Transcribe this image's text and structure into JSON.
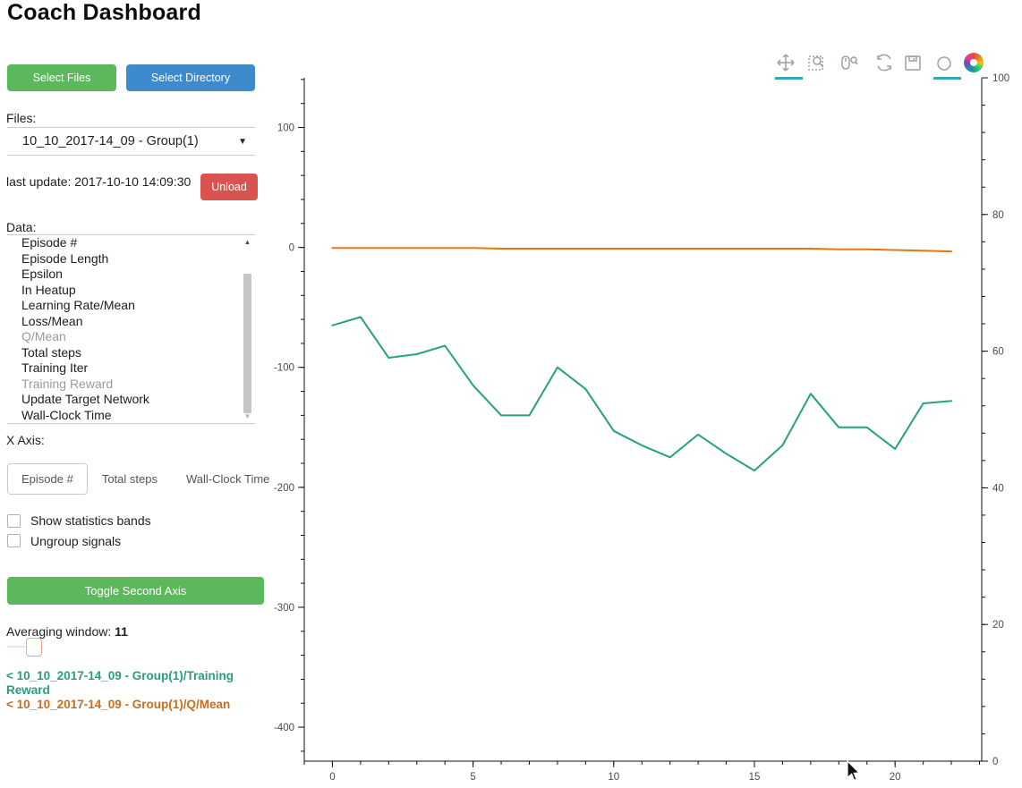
{
  "header": {
    "title": "Coach Dashboard"
  },
  "sidebar": {
    "select_files_label": "Select Files",
    "select_directory_label": "Select Directory",
    "files_label": "Files:",
    "files_selected": "10_10_2017-14_09 - Group(1)",
    "dropdown_caret_icon": "caret-down",
    "last_update": "last update: 2017-10-10 14:09:30",
    "unload_label": "Unload",
    "data_label": "Data:",
    "data_items": [
      {
        "label": "Episode #",
        "muted": false
      },
      {
        "label": "Episode Length",
        "muted": false
      },
      {
        "label": "Epsilon",
        "muted": false
      },
      {
        "label": "In Heatup",
        "muted": false
      },
      {
        "label": "Learning Rate/Mean",
        "muted": false
      },
      {
        "label": "Loss/Mean",
        "muted": false
      },
      {
        "label": "Q/Mean",
        "muted": true
      },
      {
        "label": "Total steps",
        "muted": false
      },
      {
        "label": "Training Iter",
        "muted": false
      },
      {
        "label": "Training Reward",
        "muted": true
      },
      {
        "label": "Update Target Network",
        "muted": false
      },
      {
        "label": "Wall-Clock Time",
        "muted": false
      }
    ],
    "x_axis_label": "X Axis:",
    "x_axis_tabs": [
      {
        "label": "Episode #",
        "active": true
      },
      {
        "label": "Total steps",
        "active": false
      },
      {
        "label": "Wall-Clock Time",
        "active": false
      }
    ],
    "checkboxes": [
      {
        "label": "Show statistics bands",
        "checked": false
      },
      {
        "label": "Ungroup signals",
        "checked": false
      }
    ],
    "toggle_second_axis_label": "Toggle Second Axis",
    "averaging_window_label": "Averaging window:",
    "averaging_window_value": "11",
    "legend": [
      {
        "text": "< 10_10_2017-14_09 - Group(1)/Training Reward",
        "color": "#2a9d7d"
      },
      {
        "text": "< 10_10_2017-14_09 - Group(1)/Q/Mean",
        "color": "#c96d1e"
      }
    ]
  },
  "toolbar": {
    "icons": [
      {
        "name": "pan-icon",
        "active": true
      },
      {
        "name": "box-zoom-icon",
        "active": false
      },
      {
        "name": "wheel-zoom-icon",
        "active": false
      },
      {
        "name": "reset-icon",
        "active": false
      },
      {
        "name": "save-icon",
        "active": false
      },
      {
        "name": "hover-icon",
        "active": true
      },
      {
        "name": "bokeh-logo",
        "active": false
      }
    ]
  },
  "chart_data": {
    "type": "line",
    "x": [
      0,
      1,
      2,
      3,
      4,
      5,
      6,
      7,
      8,
      9,
      10,
      11,
      12,
      13,
      14,
      15,
      16,
      17,
      18,
      19,
      20,
      21,
      22
    ],
    "series": [
      {
        "name": "10_10_2017-14_09 - Group(1)/Training Reward",
        "axis": "left",
        "color": "#26a17c",
        "values": [
          -65,
          -58,
          -92,
          -89,
          -82,
          -115,
          -140,
          -140,
          -100,
          -118,
          -153,
          -165,
          -175,
          -156,
          -172,
          -186,
          -165,
          -122,
          -150,
          -150,
          -168,
          -130,
          -128
        ]
      },
      {
        "name": "10_10_2017-14_09 - Group(1)/Q/Mean",
        "axis": "right",
        "color": "#e8760e",
        "values": [
          75.1,
          75.1,
          75.1,
          75.1,
          75.1,
          75.1,
          75.0,
          75.0,
          75.0,
          75.0,
          75.0,
          75.0,
          75.0,
          75.0,
          75.0,
          75.0,
          75.0,
          75.0,
          74.9,
          74.9,
          74.8,
          74.7,
          74.6
        ]
      }
    ],
    "x_axis": {
      "major_ticks": [
        0,
        5,
        10,
        15,
        20
      ],
      "minor_step": 1,
      "range": [
        -1.0,
        23.08
      ]
    },
    "left_axis": {
      "major_ticks": [
        100,
        0,
        -100,
        -200,
        -300,
        -400
      ],
      "minor_step": 20,
      "range": [
        141.4,
        -428.3
      ]
    },
    "right_axis": {
      "major_ticks": [
        0,
        20,
        40,
        60,
        80,
        100
      ],
      "minor_step": 4,
      "range": [
        100,
        0
      ]
    },
    "grid": false,
    "legend_position": "sidebar-bottom-left",
    "title": "",
    "xlabel": "",
    "ylabel": ""
  }
}
